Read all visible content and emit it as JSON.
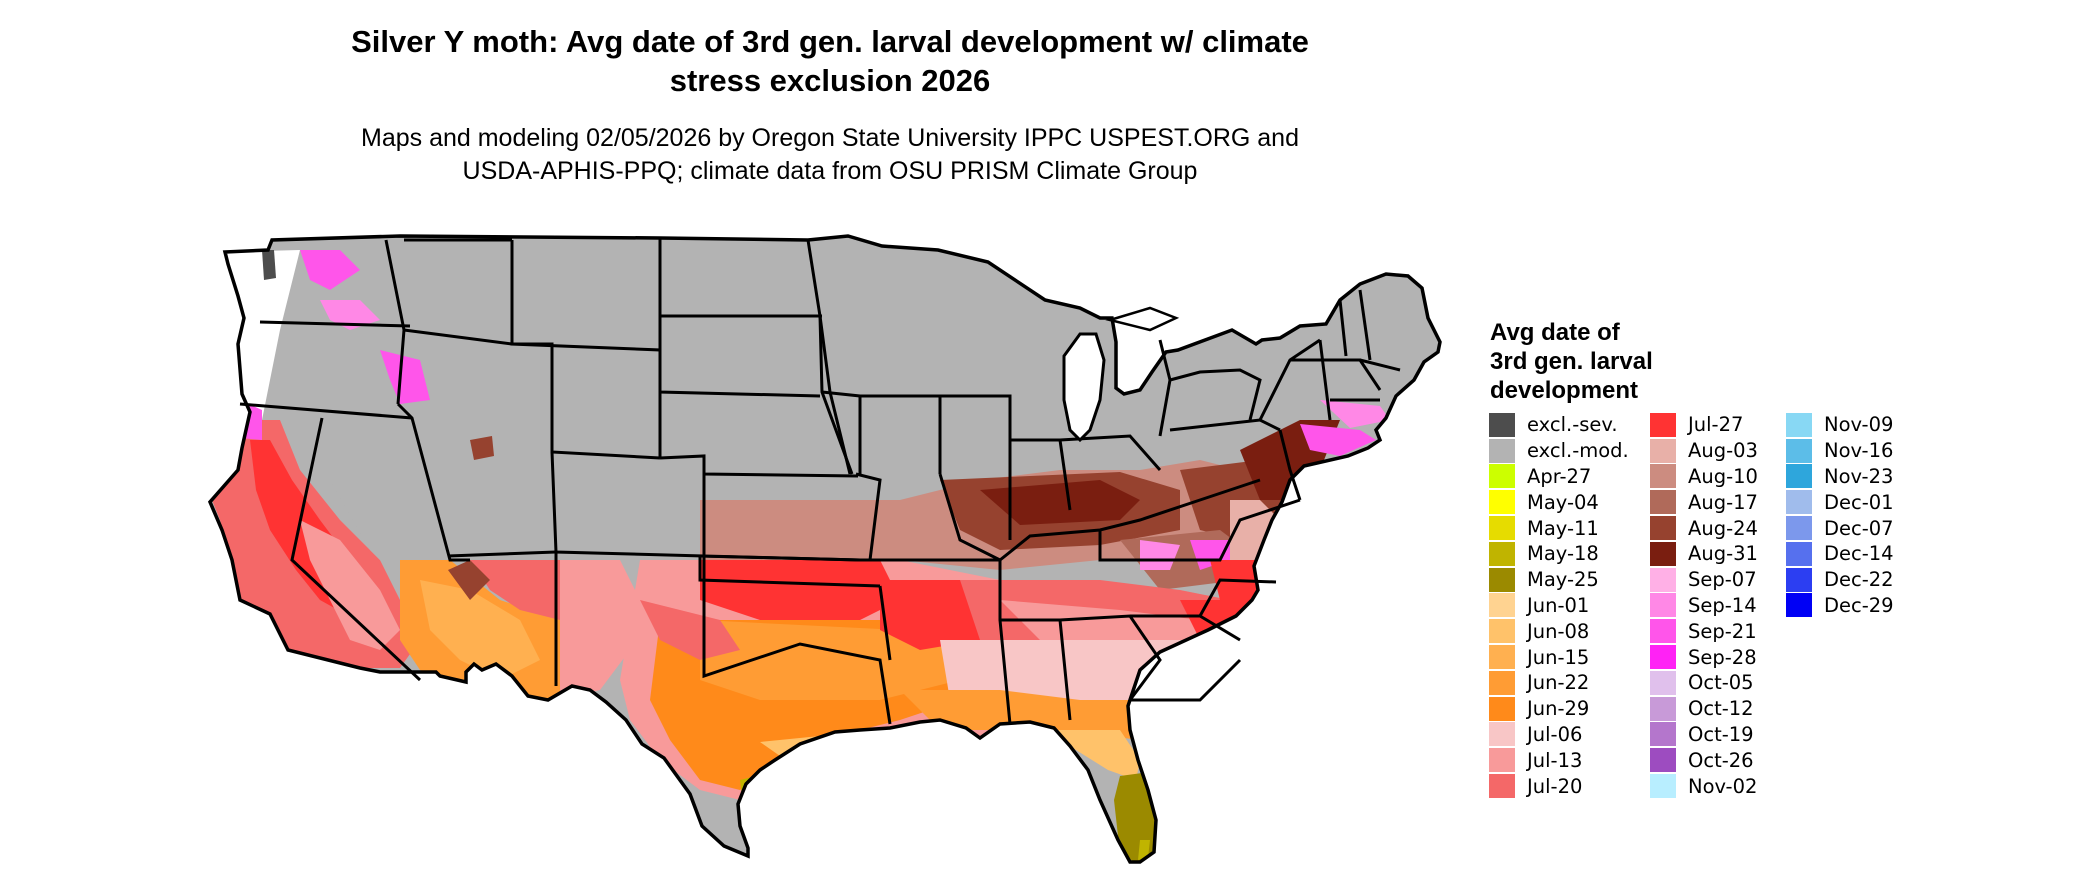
{
  "map": {
    "title_line1": "Silver Y moth: Avg date of 3rd gen. larval development w/ climate",
    "title_line2": "stress exclusion 2026",
    "subtitle_line1": "Maps and modeling 02/05/2026 by Oregon State University IPPC USPEST.ORG and",
    "subtitle_line2": "USDA-APHIS-PPQ; climate data from OSU PRISM Climate Group",
    "background_color": "#b3b3b3",
    "border_color": "#000000"
  },
  "legend": {
    "title_line1": "Avg date of",
    "title_line2": "3rd gen. larval",
    "title_line3": "development",
    "columns": [
      [
        {
          "label": "excl.-sev.",
          "color": "#4d4d4d"
        },
        {
          "label": "excl.-mod.",
          "color": "#b3b3b3"
        },
        {
          "label": "Apr-27",
          "color": "#ccff00"
        },
        {
          "label": "May-04",
          "color": "#ffff00"
        },
        {
          "label": "May-11",
          "color": "#e6dc00"
        },
        {
          "label": "May-18",
          "color": "#c0b400"
        },
        {
          "label": "May-25",
          "color": "#9b8a00"
        },
        {
          "label": "Jun-01",
          "color": "#ffd391"
        },
        {
          "label": "Jun-08",
          "color": "#ffc26a"
        },
        {
          "label": "Jun-15",
          "color": "#ffb050"
        },
        {
          "label": "Jun-22",
          "color": "#ff9c34"
        },
        {
          "label": "Jun-29",
          "color": "#ff8a1a"
        },
        {
          "label": "Jul-06",
          "color": "#f8c6c6"
        },
        {
          "label": "Jul-13",
          "color": "#f89a9a"
        },
        {
          "label": "Jul-20",
          "color": "#f46868"
        }
      ],
      [
        {
          "label": "Jul-27",
          "color": "#ff3333"
        },
        {
          "label": "Aug-03",
          "color": "#e8b0a8"
        },
        {
          "label": "Aug-10",
          "color": "#cc8c80"
        },
        {
          "label": "Aug-17",
          "color": "#b06a5a"
        },
        {
          "label": "Aug-24",
          "color": "#96422f"
        },
        {
          "label": "Aug-31",
          "color": "#7a1e10"
        },
        {
          "label": "Sep-07",
          "color": "#ffb0e6"
        },
        {
          "label": "Sep-14",
          "color": "#ff88e6"
        },
        {
          "label": "Sep-21",
          "color": "#ff55ea"
        },
        {
          "label": "Sep-28",
          "color": "#ff22f5"
        },
        {
          "label": "Oct-05",
          "color": "#e0c0ec"
        },
        {
          "label": "Oct-12",
          "color": "#c89ad8"
        },
        {
          "label": "Oct-19",
          "color": "#b476cc"
        },
        {
          "label": "Oct-26",
          "color": "#9d4cc0"
        },
        {
          "label": "Nov-02",
          "color": "#b8eeff"
        }
      ],
      [
        {
          "label": "Nov-09",
          "color": "#88d8f4"
        },
        {
          "label": "Nov-16",
          "color": "#5cbde8"
        },
        {
          "label": "Nov-23",
          "color": "#2ea6dc"
        },
        {
          "label": "Dec-01",
          "color": "#a0bcec"
        },
        {
          "label": "Dec-07",
          "color": "#7c98ec"
        },
        {
          "label": "Dec-14",
          "color": "#5670ee"
        },
        {
          "label": "Dec-22",
          "color": "#2c3ef2"
        },
        {
          "label": "Dec-29",
          "color": "#0000f5"
        }
      ]
    ]
  }
}
